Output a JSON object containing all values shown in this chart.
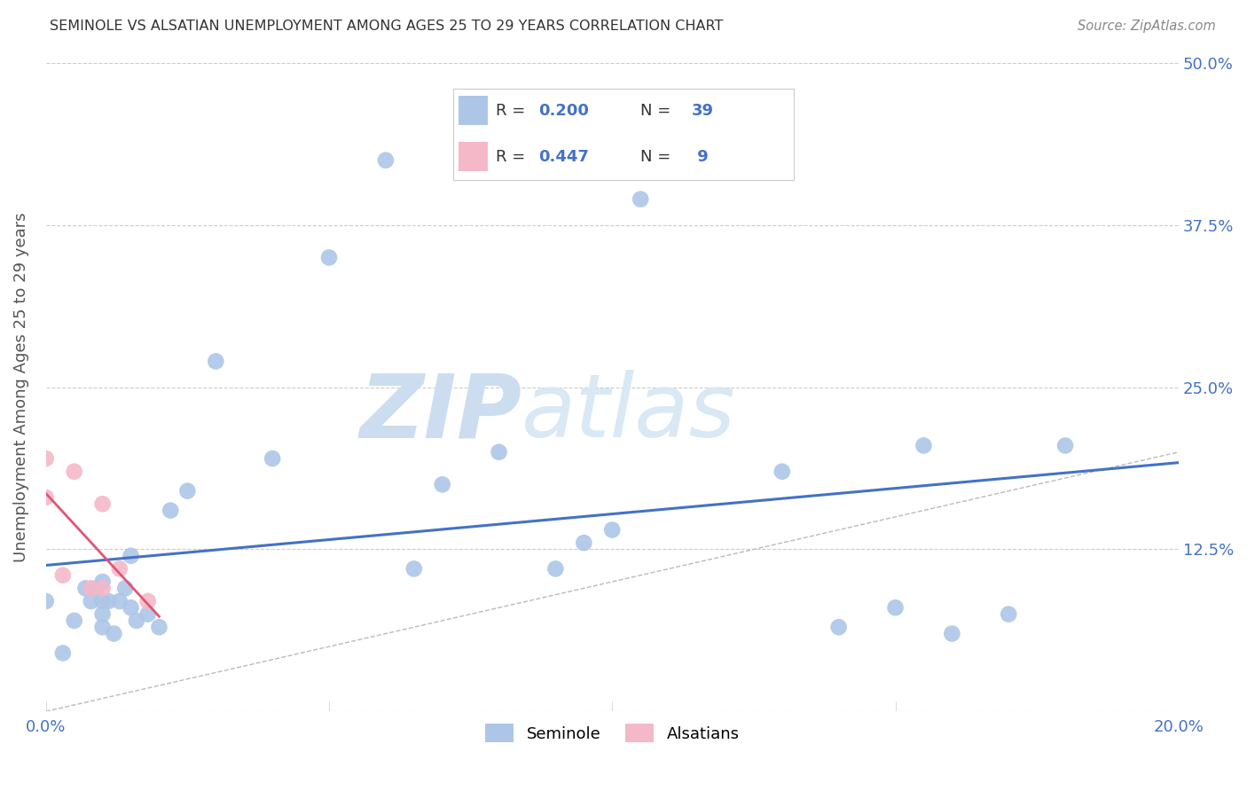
{
  "title": "SEMINOLE VS ALSATIAN UNEMPLOYMENT AMONG AGES 25 TO 29 YEARS CORRELATION CHART",
  "source": "Source: ZipAtlas.com",
  "ylabel": "Unemployment Among Ages 25 to 29 years",
  "xlim": [
    0.0,
    0.2
  ],
  "ylim": [
    0.0,
    0.5
  ],
  "xticks": [
    0.0,
    0.05,
    0.1,
    0.15,
    0.2
  ],
  "xtick_labels": [
    "0.0%",
    "",
    "",
    "",
    "20.0%"
  ],
  "yticks": [
    0.0,
    0.125,
    0.25,
    0.375,
    0.5
  ],
  "ytick_labels": [
    "",
    "12.5%",
    "25.0%",
    "37.5%",
    "50.0%"
  ],
  "seminole_r": 0.2,
  "seminole_n": 39,
  "alsatian_r": 0.447,
  "alsatian_n": 9,
  "seminole_color": "#adc6e8",
  "alsatian_color": "#f4b8c8",
  "trend_seminole_color": "#4472c4",
  "trend_alsatian_color": "#e05575",
  "value_color": "#4472c4",
  "label_color": "#333333",
  "watermark_zip": "ZIP",
  "watermark_atlas": "atlas",
  "watermark_color": "#ccddf0",
  "background_color": "#ffffff",
  "title_color": "#333333",
  "axis_label_color": "#555555",
  "tick_label_color": "#4472c4",
  "source_color": "#888888",
  "grid_color": "#cccccc",
  "seminole_x": [
    0.0,
    0.003,
    0.005,
    0.007,
    0.008,
    0.009,
    0.01,
    0.01,
    0.01,
    0.01,
    0.011,
    0.012,
    0.013,
    0.014,
    0.015,
    0.015,
    0.016,
    0.018,
    0.02,
    0.022,
    0.025,
    0.03,
    0.04,
    0.05,
    0.06,
    0.065,
    0.07,
    0.08,
    0.09,
    0.095,
    0.1,
    0.105,
    0.13,
    0.14,
    0.15,
    0.155,
    0.16,
    0.17,
    0.18
  ],
  "seminole_y": [
    0.085,
    0.045,
    0.07,
    0.095,
    0.085,
    0.095,
    0.065,
    0.075,
    0.085,
    0.1,
    0.085,
    0.06,
    0.085,
    0.095,
    0.08,
    0.12,
    0.07,
    0.075,
    0.065,
    0.155,
    0.17,
    0.27,
    0.195,
    0.35,
    0.425,
    0.11,
    0.175,
    0.2,
    0.11,
    0.13,
    0.14,
    0.395,
    0.185,
    0.065,
    0.08,
    0.205,
    0.06,
    0.075,
    0.205
  ],
  "alsatian_x": [
    0.0,
    0.0,
    0.003,
    0.005,
    0.008,
    0.01,
    0.01,
    0.013,
    0.018
  ],
  "alsatian_y": [
    0.195,
    0.165,
    0.105,
    0.185,
    0.095,
    0.095,
    0.16,
    0.11,
    0.085
  ],
  "marker_size": 180
}
